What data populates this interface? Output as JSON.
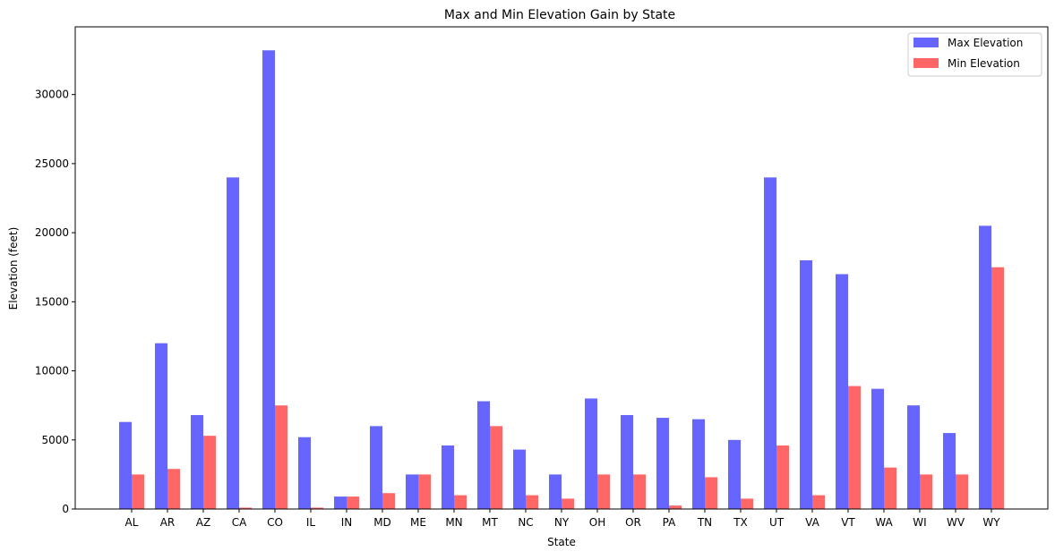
{
  "chart_data": {
    "type": "bar",
    "title": "Max and Min Elevation Gain by State",
    "xlabel": "State",
    "ylabel": "Elevation (feet)",
    "categories": [
      "AL",
      "AR",
      "AZ",
      "CA",
      "CO",
      "IL",
      "IN",
      "MD",
      "ME",
      "MN",
      "MT",
      "NC",
      "NY",
      "OH",
      "OR",
      "PA",
      "TN",
      "TX",
      "UT",
      "VA",
      "VT",
      "WA",
      "WI",
      "WV",
      "WY"
    ],
    "series": [
      {
        "name": "Max Elevation",
        "color": "#6666ff",
        "values": [
          6300,
          12000,
          6800,
          24000,
          33200,
          5200,
          900,
          6000,
          2500,
          4600,
          7800,
          4300,
          2500,
          8000,
          6800,
          6600,
          6500,
          5000,
          24000,
          18000,
          17000,
          8700,
          7500,
          5500,
          20500
        ]
      },
      {
        "name": "Min Elevation",
        "color": "#ff6666",
        "values": [
          2500,
          2900,
          5300,
          100,
          7500,
          100,
          900,
          1150,
          2500,
          1000,
          6000,
          1000,
          750,
          2500,
          2500,
          250,
          2300,
          750,
          4600,
          1000,
          8900,
          3000,
          2500,
          2500,
          17500
        ]
      }
    ],
    "ylim": [
      0,
      34900
    ],
    "yticks": [
      0,
      5000,
      10000,
      15000,
      20000,
      25000,
      30000
    ],
    "grid": false,
    "legend_position": "top-right"
  }
}
